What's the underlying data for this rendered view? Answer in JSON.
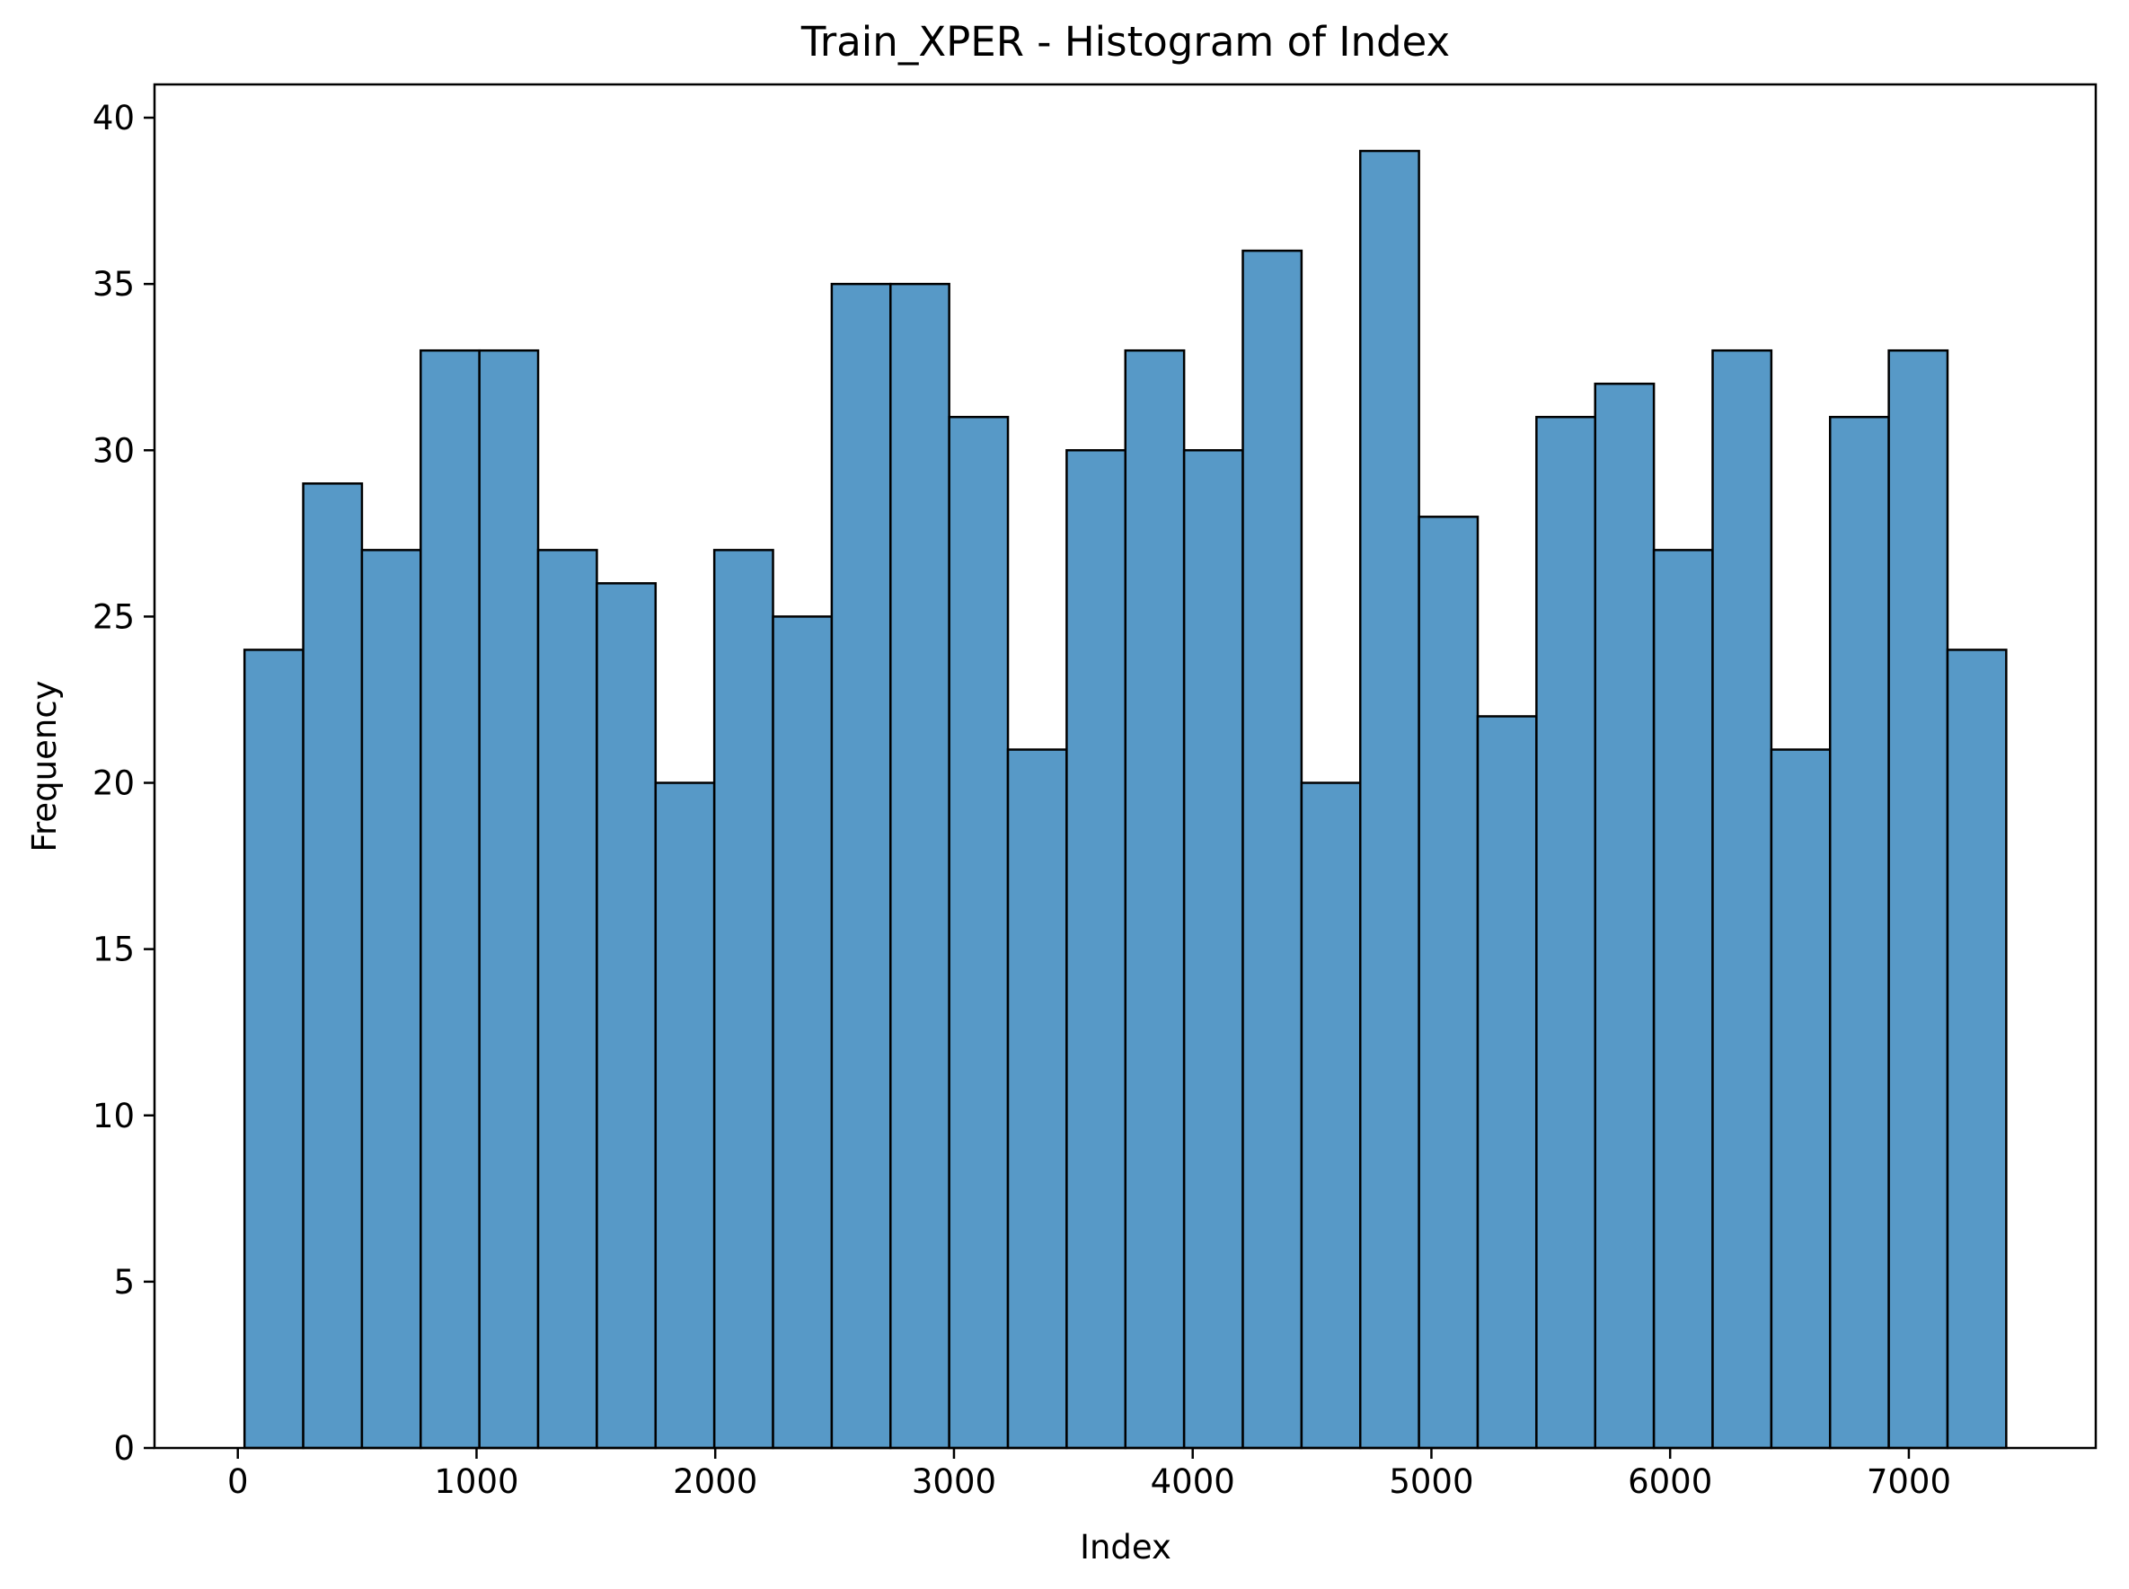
{
  "colors": {
    "bar_fill": "#5799c7",
    "bar_edge": "#000000",
    "axis": "#000000",
    "background": "#ffffff"
  },
  "chart_data": {
    "type": "bar",
    "subtype": "histogram",
    "title": "Train_XPER - Histogram of Index",
    "xlabel": "Index",
    "ylabel": "Frequency",
    "bin_start": 28,
    "bin_width": 246,
    "values": [
      24,
      29,
      27,
      33,
      33,
      27,
      26,
      20,
      27,
      25,
      35,
      35,
      31,
      21,
      30,
      33,
      30,
      36,
      20,
      39,
      28,
      22,
      31,
      32,
      27,
      33,
      21,
      31,
      33,
      24
    ],
    "xlim": [
      -349,
      7783
    ],
    "ylim": [
      0,
      41
    ],
    "xticks": [
      0,
      1000,
      2000,
      3000,
      4000,
      5000,
      6000,
      7000
    ],
    "xtick_labels": [
      "0",
      "1000",
      "2000",
      "3000",
      "4000",
      "5000",
      "6000",
      "7000"
    ],
    "yticks": [
      0,
      5,
      10,
      15,
      20,
      25,
      30,
      35,
      40
    ],
    "ytick_labels": [
      "0",
      "5",
      "10",
      "15",
      "20",
      "25",
      "30",
      "35",
      "40"
    ],
    "grid": false,
    "legend": "none"
  }
}
